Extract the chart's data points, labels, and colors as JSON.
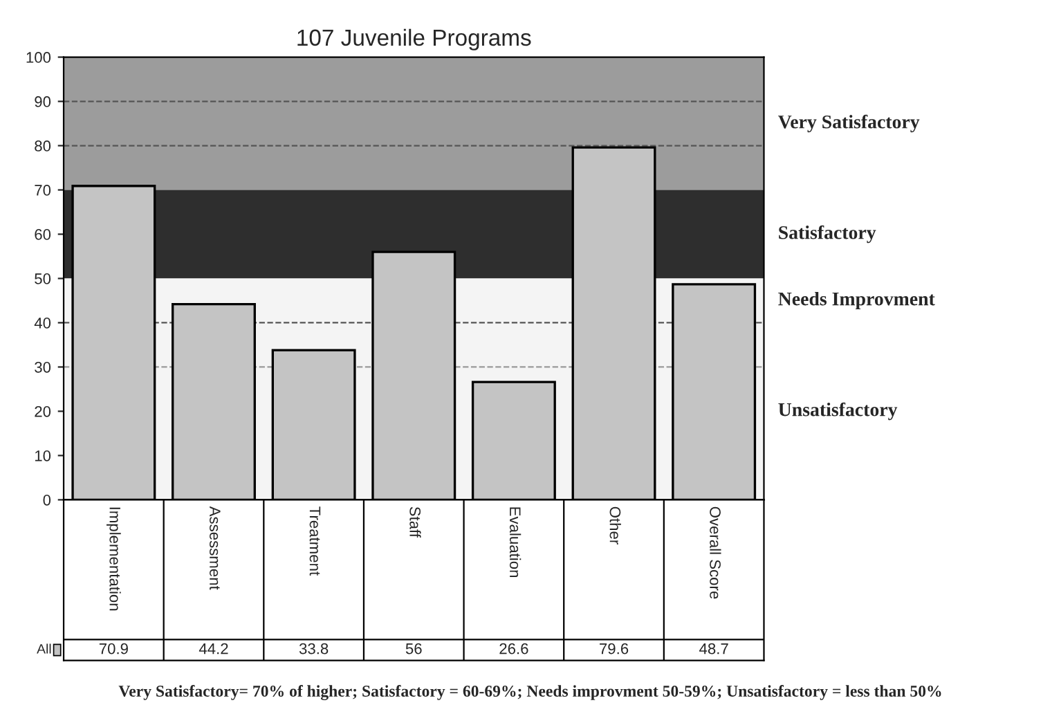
{
  "chart_data": {
    "type": "bar",
    "title": "107 Juvenile Programs",
    "categories": [
      "Implementation",
      "Assessment",
      "Treatment",
      "Staff",
      "Evaluation",
      "Other",
      "Overall Score"
    ],
    "series": [
      {
        "name": "All",
        "color": "#c4c4c4",
        "values": [
          70.9,
          44.2,
          33.8,
          56,
          26.6,
          79.6,
          48.7
        ]
      }
    ],
    "ylim": [
      0,
      100
    ],
    "yticks": [
      0,
      10,
      20,
      30,
      40,
      50,
      60,
      70,
      80,
      90,
      100
    ],
    "tick_labels": "y",
    "data_labels": true,
    "legend": "bottom left",
    "grid": false,
    "bands": [
      {
        "axis": "y",
        "from": 70,
        "to": 100,
        "label": "Very Satisfactory",
        "color": "#9c9c9c"
      },
      {
        "axis": "y",
        "from": 50,
        "to": 70,
        "label": "Satisfactory",
        "color": "#2e2e2e"
      },
      {
        "axis": "y",
        "from": 40,
        "to": 50,
        "label": "Needs Improvment",
        "color": "#f4f4f4"
      },
      {
        "axis": "y",
        "from": 0,
        "to": 40,
        "label": "Unsatisfactory",
        "color": "#f4f4f4"
      }
    ],
    "ref_lines": [
      {
        "axis": "y",
        "value": 90,
        "line_style": "dashed",
        "color": "#555555"
      },
      {
        "axis": "y",
        "value": 80,
        "line_style": "dashed",
        "color": "#555555"
      },
      {
        "axis": "y",
        "value": 40,
        "line_style": "dashed",
        "color": "#555555"
      },
      {
        "axis": "y",
        "value": 30,
        "line_style": "dashed",
        "color": "#999999"
      }
    ],
    "annotations": [
      "Very Satisfactory= 70% of higher; Satisfactory = 60-69%; Needs improvment 50-59%; Unsatisfactory = less than 50%"
    ]
  }
}
